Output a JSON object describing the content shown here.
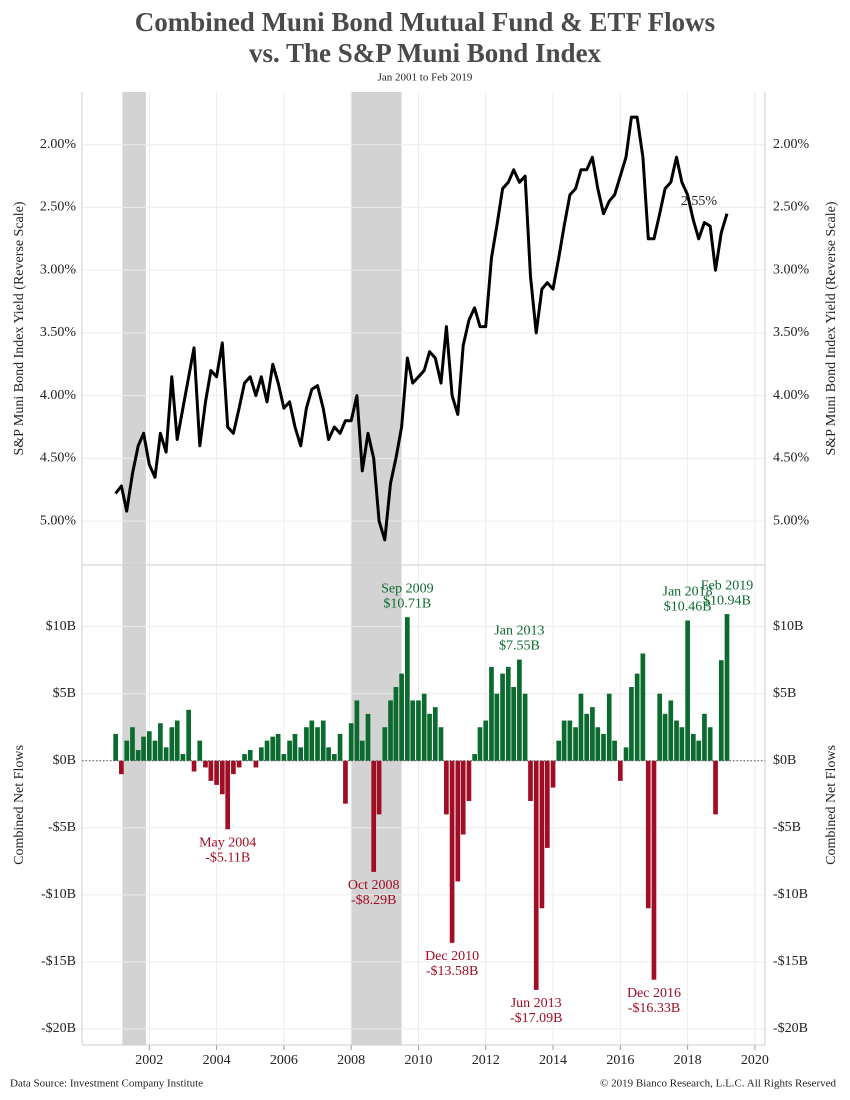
{
  "header": {
    "title_lines": [
      "Combined Muni Bond Mutual Fund & ETF Flows",
      "vs. The S&P Muni Bond Index"
    ],
    "subtitle": "Jan 2001 to Feb 2019"
  },
  "footer": {
    "source": "Data Source: Investment Company Institute",
    "copyright": "© 2019 Bianco Research, L.L.C. All Rights Reserved"
  },
  "xlim": [
    2000,
    2020.3
  ],
  "xticks": [
    2002,
    2004,
    2006,
    2008,
    2010,
    2012,
    2014,
    2016,
    2018,
    2020
  ],
  "shading": [
    [
      2001.2,
      2001.9
    ],
    [
      2008.0,
      2009.5
    ]
  ],
  "shading_color": "#d3d3d3",
  "chart_data": [
    {
      "type": "line",
      "y_label": "S&P Muni Bond Index Yield (Reverse Scale)",
      "color": "#000000",
      "ylim": [
        5.35,
        1.58
      ],
      "yticks": [
        {
          "value": 2,
          "label": "2.00%"
        },
        {
          "value": 2.5,
          "label": "2.50%"
        },
        {
          "value": 3,
          "label": "3.00%"
        },
        {
          "value": 3.5,
          "label": "3.50%"
        },
        {
          "value": 4,
          "label": "4.00%"
        },
        {
          "value": 4.5,
          "label": "4.50%"
        },
        {
          "value": 5,
          "label": "5.00%"
        }
      ],
      "y2lim": [
        5.35,
        1.58
      ],
      "y2ticks": [
        {
          "value": 2,
          "label": "2.00%"
        },
        {
          "value": 2.5,
          "label": "2.50%"
        },
        {
          "value": 3,
          "label": "3.00%"
        },
        {
          "value": 3.5,
          "label": "3.50%"
        },
        {
          "value": 4,
          "label": "4.00%"
        },
        {
          "value": 4.5,
          "label": "4.50%"
        },
        {
          "value": 5,
          "label": "5.00%"
        }
      ],
      "grid": true,
      "x": [
        2001.0,
        2001.17,
        2001.33,
        2001.5,
        2001.67,
        2001.83,
        2002.0,
        2002.17,
        2002.33,
        2002.5,
        2002.67,
        2002.83,
        2003.0,
        2003.17,
        2003.33,
        2003.5,
        2003.67,
        2003.83,
        2004.0,
        2004.17,
        2004.33,
        2004.5,
        2004.67,
        2004.83,
        2005.0,
        2005.17,
        2005.33,
        2005.5,
        2005.67,
        2005.83,
        2006.0,
        2006.17,
        2006.33,
        2006.5,
        2006.67,
        2006.83,
        2007.0,
        2007.17,
        2007.33,
        2007.5,
        2007.67,
        2007.83,
        2008.0,
        2008.17,
        2008.33,
        2008.5,
        2008.67,
        2008.83,
        2009.0,
        2009.17,
        2009.33,
        2009.5,
        2009.67,
        2009.83,
        2010.0,
        2010.17,
        2010.33,
        2010.5,
        2010.67,
        2010.83,
        2011.0,
        2011.17,
        2011.33,
        2011.5,
        2011.67,
        2011.83,
        2012.0,
        2012.17,
        2012.33,
        2012.5,
        2012.67,
        2012.83,
        2013.0,
        2013.17,
        2013.33,
        2013.5,
        2013.67,
        2013.83,
        2014.0,
        2014.17,
        2014.33,
        2014.5,
        2014.67,
        2014.83,
        2015.0,
        2015.17,
        2015.33,
        2015.5,
        2015.67,
        2015.83,
        2016.0,
        2016.17,
        2016.33,
        2016.5,
        2016.67,
        2016.83,
        2017.0,
        2017.17,
        2017.33,
        2017.5,
        2017.67,
        2017.83,
        2018.0,
        2018.17,
        2018.33,
        2018.5,
        2018.67,
        2018.83,
        2019.0,
        2019.17
      ],
      "values": [
        4.78,
        4.72,
        4.92,
        4.62,
        4.4,
        4.3,
        4.55,
        4.65,
        4.3,
        4.45,
        3.85,
        4.35,
        4.1,
        3.85,
        3.62,
        4.4,
        4.05,
        3.8,
        3.85,
        3.58,
        4.25,
        4.3,
        4.1,
        3.9,
        3.85,
        4.0,
        3.85,
        4.05,
        3.75,
        3.9,
        4.1,
        4.05,
        4.25,
        4.4,
        4.1,
        3.95,
        3.92,
        4.1,
        4.35,
        4.25,
        4.3,
        4.2,
        4.2,
        4.0,
        4.6,
        4.3,
        4.5,
        5.0,
        5.15,
        4.7,
        4.5,
        4.25,
        3.7,
        3.9,
        3.85,
        3.8,
        3.65,
        3.7,
        3.9,
        3.45,
        4.0,
        4.15,
        3.6,
        3.4,
        3.3,
        3.45,
        3.45,
        2.9,
        2.65,
        2.35,
        2.3,
        2.2,
        2.3,
        2.25,
        3.05,
        3.5,
        3.15,
        3.1,
        3.15,
        2.9,
        2.65,
        2.4,
        2.35,
        2.2,
        2.2,
        2.1,
        2.35,
        2.55,
        2.45,
        2.4,
        2.25,
        2.1,
        1.78,
        1.78,
        2.1,
        2.75,
        2.75,
        2.55,
        2.35,
        2.3,
        2.1,
        2.3,
        2.4,
        2.6,
        2.75,
        2.62,
        2.65,
        3.0,
        2.7,
        2.55
      ],
      "annotations": [
        {
          "x": 2019.17,
          "value": 2.55,
          "label": "2.55%"
        }
      ]
    },
    {
      "type": "bar",
      "y_label": "Combined Net Flows",
      "positive_color": "#0b6b2e",
      "negative_color": "#a00d24",
      "ylim": [
        -21.2,
        14.6
      ],
      "yticks": [
        {
          "value": 10,
          "label": "$10B"
        },
        {
          "value": 5,
          "label": "$5B"
        },
        {
          "value": 0,
          "label": "$0B"
        },
        {
          "value": -5,
          "label": "-$5B"
        },
        {
          "value": -10,
          "label": "-$10B"
        },
        {
          "value": -15,
          "label": "-$15B"
        },
        {
          "value": -20,
          "label": "-$20B"
        }
      ],
      "y2lim": [
        -21.2,
        14.6
      ],
      "y2ticks": [
        {
          "value": 10,
          "label": "$10B"
        },
        {
          "value": 5,
          "label": "$5B"
        },
        {
          "value": 0,
          "label": "$0B"
        },
        {
          "value": -5,
          "label": "-$5B"
        },
        {
          "value": -10,
          "label": "-$10B"
        },
        {
          "value": -15,
          "label": "-$15B"
        },
        {
          "value": -20,
          "label": "-$20B"
        }
      ],
      "grid": true,
      "x": [
        2001.0,
        2001.17,
        2001.33,
        2001.5,
        2001.67,
        2001.83,
        2002.0,
        2002.17,
        2002.33,
        2002.5,
        2002.67,
        2002.83,
        2003.0,
        2003.17,
        2003.33,
        2003.5,
        2003.67,
        2003.83,
        2004.0,
        2004.17,
        2004.33,
        2004.5,
        2004.67,
        2004.83,
        2005.0,
        2005.17,
        2005.33,
        2005.5,
        2005.67,
        2005.83,
        2006.0,
        2006.17,
        2006.33,
        2006.5,
        2006.67,
        2006.83,
        2007.0,
        2007.17,
        2007.33,
        2007.5,
        2007.67,
        2007.83,
        2008.0,
        2008.17,
        2008.33,
        2008.5,
        2008.67,
        2008.83,
        2009.0,
        2009.17,
        2009.33,
        2009.5,
        2009.67,
        2009.83,
        2010.0,
        2010.17,
        2010.33,
        2010.5,
        2010.67,
        2010.83,
        2011.0,
        2011.17,
        2011.33,
        2011.5,
        2011.67,
        2011.83,
        2012.0,
        2012.17,
        2012.33,
        2012.5,
        2012.67,
        2012.83,
        2013.0,
        2013.17,
        2013.33,
        2013.5,
        2013.67,
        2013.83,
        2014.0,
        2014.17,
        2014.33,
        2014.5,
        2014.67,
        2014.83,
        2015.0,
        2015.17,
        2015.33,
        2015.5,
        2015.67,
        2015.83,
        2016.0,
        2016.17,
        2016.33,
        2016.5,
        2016.67,
        2016.83,
        2017.0,
        2017.17,
        2017.33,
        2017.5,
        2017.67,
        2017.83,
        2018.0,
        2018.17,
        2018.33,
        2018.5,
        2018.67,
        2018.83,
        2019.0,
        2019.17
      ],
      "values": [
        2.0,
        -1.0,
        1.5,
        2.5,
        0.8,
        1.8,
        2.2,
        1.5,
        2.8,
        1.0,
        2.5,
        3.0,
        0.5,
        3.8,
        -0.8,
        1.5,
        -0.5,
        -1.5,
        -1.8,
        -2.5,
        -5.11,
        -1.0,
        -0.5,
        0.5,
        0.8,
        -0.5,
        1.0,
        1.5,
        1.8,
        2.0,
        0.5,
        1.5,
        2.0,
        1.0,
        2.5,
        3.0,
        2.5,
        3.0,
        1.0,
        0.5,
        2.0,
        -3.2,
        2.8,
        4.5,
        1.5,
        3.5,
        -8.29,
        -4.0,
        2.5,
        4.5,
        5.5,
        6.5,
        10.71,
        4.5,
        4.5,
        5.0,
        3.5,
        4.0,
        2.5,
        -4.0,
        -13.58,
        -9.0,
        -5.5,
        -3.0,
        0.5,
        2.5,
        3.0,
        7.0,
        5.0,
        6.5,
        7.0,
        5.5,
        7.55,
        5.0,
        -3.0,
        -17.09,
        -11.0,
        -6.5,
        -2.0,
        1.5,
        3.0,
        3.0,
        2.5,
        5.0,
        3.5,
        4.0,
        2.5,
        2.0,
        5.0,
        1.5,
        -1.5,
        1.0,
        5.5,
        6.5,
        8.0,
        -11.0,
        -16.33,
        5.0,
        3.5,
        4.5,
        3.0,
        2.5,
        10.46,
        2.0,
        1.5,
        3.5,
        2.5,
        -4.0,
        7.5,
        10.94
      ],
      "annotations": [
        {
          "date": "May 2004",
          "x": 2004.33,
          "value": -5.11,
          "label": "-$5.11B"
        },
        {
          "date": "Oct 2008",
          "x": 2008.67,
          "value": -8.29,
          "label": "-$8.29B"
        },
        {
          "date": "Sep 2009",
          "x": 2009.67,
          "value": 10.71,
          "label": "$10.71B"
        },
        {
          "date": "Dec 2010",
          "x": 2011.0,
          "value": -13.58,
          "label": "-$13.58B"
        },
        {
          "date": "Jan 2013",
          "x": 2013.0,
          "value": 7.55,
          "label": "$7.55B"
        },
        {
          "date": "Jun 2013",
          "x": 2013.5,
          "value": -17.09,
          "label": "-$17.09B"
        },
        {
          "date": "Dec 2016",
          "x": 2017.0,
          "value": -16.33,
          "label": "-$16.33B"
        },
        {
          "date": "Jan 2018",
          "x": 2018.0,
          "value": 10.46,
          "label": "$10.46B"
        },
        {
          "date": "Feb 2019",
          "x": 2019.17,
          "value": 10.94,
          "label": "$10.94B"
        }
      ]
    }
  ]
}
